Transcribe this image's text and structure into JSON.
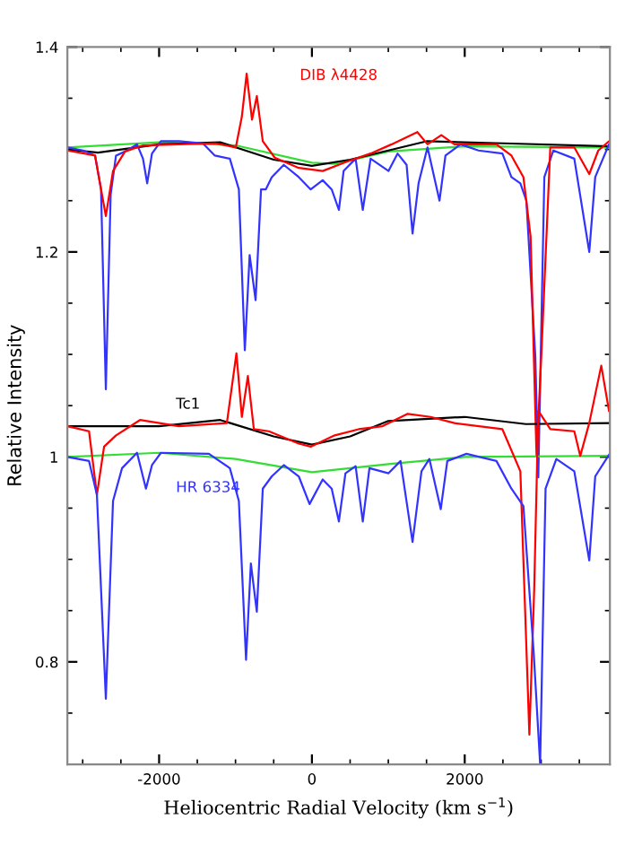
{
  "chart_data": {
    "type": "line",
    "xlabel": "Heliocentric Radial Velocity (km s$^{−1}$)",
    "ylabel": "Relative Intensity",
    "xlim": [
      -3200,
      3900
    ],
    "xticks": [
      -2000,
      0,
      2000
    ],
    "ylim": [
      0.7,
      1.4
    ],
    "yticks": [
      0.8,
      1,
      1.2,
      1.4
    ],
    "grid": false,
    "legend": false,
    "marker": "none",
    "line_style": "solid",
    "annotations": [
      "DIB λ4428"
    ],
    "series": [
      {
        "color": "#33dd33",
        "x": [
          -3200,
          -2000,
          -1000,
          0,
          300,
          1000,
          2000,
          3900
        ],
        "values": [
          1.302,
          1.307,
          1.304,
          1.287,
          1.286,
          1.298,
          1.303,
          1.302
        ]
      },
      {
        "color": "#000000",
        "x": [
          -3200,
          -2800,
          -2000,
          -1200,
          -500,
          0,
          500,
          1500,
          2500,
          3900
        ],
        "values": [
          1.3,
          1.297,
          1.305,
          1.307,
          1.29,
          1.284,
          1.29,
          1.308,
          1.306,
          1.303
        ]
      },
      {
        "color": "#3333ff",
        "x": [
          -3200,
          -2995,
          -2838,
          -2760,
          -2697,
          -2634,
          -2564,
          -2446,
          -2289,
          -2211,
          -2156,
          -2093,
          -1976,
          -1740,
          -1427,
          -1270,
          -1074,
          -956,
          -878,
          -815,
          -737,
          -666,
          -604,
          -525,
          -368,
          -172,
          -16,
          141,
          259,
          353,
          415,
          572,
          666,
          768,
          1003,
          1121,
          1239,
          1317,
          1396,
          1513,
          1670,
          1748,
          1944,
          2180,
          2493,
          2611,
          2728,
          2807,
          2924,
          2963,
          3042,
          3160,
          3434,
          3630,
          3708,
          3888
        ],
        "values": [
          1.302,
          1.299,
          1.294,
          1.261,
          1.066,
          1.256,
          1.294,
          1.298,
          1.305,
          1.291,
          1.267,
          1.296,
          1.308,
          1.308,
          1.306,
          1.294,
          1.291,
          1.261,
          1.104,
          1.197,
          1.153,
          1.261,
          1.261,
          1.273,
          1.285,
          1.273,
          1.261,
          1.27,
          1.261,
          1.241,
          1.279,
          1.291,
          1.241,
          1.291,
          1.279,
          1.296,
          1.285,
          1.218,
          1.267,
          1.302,
          1.25,
          1.294,
          1.305,
          1.299,
          1.296,
          1.273,
          1.267,
          1.25,
          1.098,
          0.98,
          1.273,
          1.299,
          1.291,
          1.2,
          1.273,
          1.305
        ]
      },
      {
        "color": "#ff0000",
        "x": [
          -3200,
          -2838,
          -2697,
          -2603,
          -2446,
          -2211,
          -1740,
          -1270,
          -996,
          -917,
          -854,
          -784,
          -721,
          -643,
          -486,
          -172,
          141,
          455,
          768,
          1043,
          1380,
          1513,
          1694,
          1866,
          2415,
          2611,
          2768,
          2862,
          2940,
          3003,
          3120,
          3434,
          3630,
          3748,
          3888
        ],
        "values": [
          1.299,
          1.294,
          1.235,
          1.279,
          1.298,
          1.304,
          1.305,
          1.306,
          1.302,
          1.332,
          1.374,
          1.329,
          1.352,
          1.308,
          1.292,
          1.282,
          1.279,
          1.288,
          1.296,
          1.305,
          1.317,
          1.305,
          1.314,
          1.305,
          1.305,
          1.294,
          1.273,
          1.215,
          1.0,
          1.1,
          1.302,
          1.302,
          1.276,
          1.299,
          1.308
        ]
      },
      {
        "color": "#33dd33",
        "x": [
          -3200,
          -2000,
          -1000,
          0,
          1000,
          2000,
          3900
        ],
        "values": [
          1.0,
          1.004,
          0.998,
          0.985,
          0.993,
          1.0,
          1.001
        ]
      },
      {
        "name": "Tc1",
        "color": "#000000",
        "x": [
          -3200,
          -2000,
          -1200,
          -500,
          0,
          500,
          1000,
          2000,
          2800,
          3900
        ],
        "values": [
          1.03,
          1.03,
          1.036,
          1.02,
          1.012,
          1.02,
          1.035,
          1.039,
          1.032,
          1.033
        ]
      },
      {
        "color": "#ff0000",
        "x": [
          -3200,
          -2917,
          -2814,
          -2720,
          -2564,
          -2250,
          -1740,
          -1113,
          -988,
          -917,
          -838,
          -760,
          -564,
          -172,
          -16,
          298,
          612,
          925,
          1254,
          1552,
          1866,
          2493,
          2728,
          2846,
          2909,
          2963,
          3120,
          3434,
          3512,
          3630,
          3787,
          3888
        ],
        "values": [
          1.03,
          1.025,
          0.963,
          1.01,
          1.021,
          1.036,
          1.03,
          1.033,
          1.101,
          1.039,
          1.079,
          1.027,
          1.025,
          1.013,
          1.01,
          1.021,
          1.027,
          1.03,
          1.042,
          1.039,
          1.033,
          1.027,
          0.986,
          0.729,
          0.87,
          1.045,
          1.027,
          1.025,
          1.001,
          1.033,
          1.089,
          1.045
        ]
      },
      {
        "name": "HR 6334",
        "color": "#3333ff",
        "x": [
          -3200,
          -2917,
          -2814,
          -2697,
          -2603,
          -2485,
          -2289,
          -2172,
          -2093,
          -1976,
          -1348,
          -1074,
          -956,
          -862,
          -799,
          -721,
          -643,
          -525,
          -368,
          -172,
          -31,
          141,
          259,
          353,
          439,
          572,
          666,
          753,
          1003,
          1160,
          1317,
          1434,
          1537,
          1686,
          1772,
          2023,
          2415,
          2611,
          2768,
          2901,
          2987,
          3058,
          3199,
          3434,
          3630,
          3708,
          3888
        ],
        "values": [
          1.0,
          0.996,
          0.963,
          0.764,
          0.957,
          0.989,
          1.004,
          0.969,
          0.992,
          1.004,
          1.003,
          0.989,
          0.957,
          0.802,
          0.896,
          0.849,
          0.969,
          0.981,
          0.992,
          0.981,
          0.954,
          0.978,
          0.969,
          0.937,
          0.984,
          0.991,
          0.937,
          0.989,
          0.984,
          0.996,
          0.917,
          0.986,
          0.998,
          0.949,
          0.996,
          1.003,
          0.996,
          0.969,
          0.952,
          0.811,
          0.7,
          0.969,
          0.998,
          0.986,
          0.899,
          0.981,
          1.002
        ]
      }
    ]
  }
}
